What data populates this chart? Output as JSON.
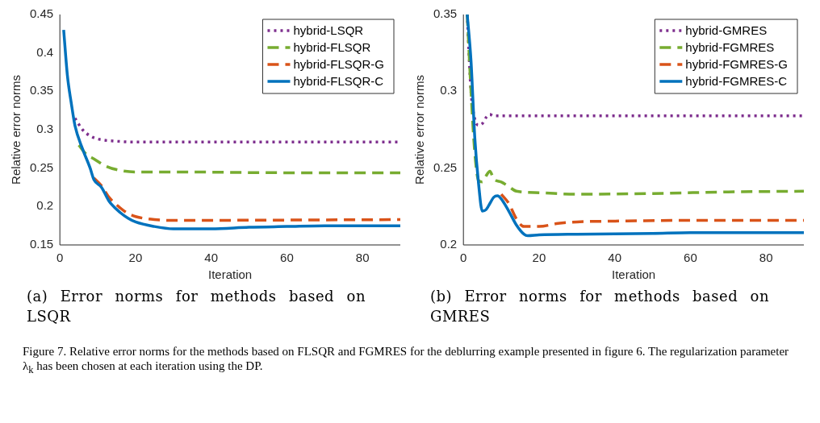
{
  "chart_data": [
    {
      "type": "line",
      "title": "(a) Error norms for methods based on LSQR",
      "xlabel": "Iteration",
      "ylabel": "Relative error norms",
      "xlim": [
        0,
        90
      ],
      "xticks": [
        0,
        20,
        40,
        60,
        80
      ],
      "ylim": [
        0.15,
        0.45
      ],
      "yticks": [
        0.15,
        0.2,
        0.25,
        0.3,
        0.35,
        0.4,
        0.45
      ],
      "grid": false,
      "legend": "top right",
      "annotations": [
        "Figure 7. Relative error norms for the methods based on FLSQR and FGMRES for the deblurring example presented in figure 6. The regularization parameter λ$_{k}$ has been chosen at each iteration using the DP."
      ],
      "series": [
        {
          "name": "hybrid-LSQR",
          "color": "#7e2f8e",
          "line_style": "dotted",
          "x": [
            4,
            6,
            8,
            10,
            15,
            20,
            90
          ],
          "values": [
            0.315,
            0.3,
            0.292,
            0.288,
            0.285,
            0.284,
            0.284
          ]
        },
        {
          "name": "hybrid-FLSQR",
          "color": "#77ac30",
          "line_style": "dashed",
          "x": [
            5,
            7,
            9,
            12,
            15,
            20,
            30,
            60,
            90
          ],
          "values": [
            0.28,
            0.268,
            0.262,
            0.253,
            0.248,
            0.245,
            0.245,
            0.244,
            0.244
          ]
        },
        {
          "name": "hybrid-FLSQR-G",
          "color": "#d95319",
          "line_style": "dashed",
          "x": [
            9,
            11,
            13,
            16,
            18,
            20,
            25,
            30,
            90
          ],
          "values": [
            0.237,
            0.227,
            0.212,
            0.198,
            0.191,
            0.187,
            0.183,
            0.182,
            0.183
          ]
        },
        {
          "name": "hybrid-FLSQR-C",
          "color": "#0072bd",
          "line_style": "solid",
          "x": [
            1,
            2,
            3,
            4,
            6,
            8,
            9,
            11,
            13,
            16,
            18,
            20,
            25,
            30,
            40,
            50,
            60,
            70,
            90
          ],
          "values": [
            0.43,
            0.37,
            0.335,
            0.305,
            0.275,
            0.25,
            0.235,
            0.225,
            0.207,
            0.192,
            0.185,
            0.18,
            0.174,
            0.171,
            0.171,
            0.173,
            0.174,
            0.175,
            0.175
          ]
        }
      ]
    },
    {
      "type": "line",
      "title": "(b) Error norms for methods based on GMRES",
      "xlabel": "Iteration",
      "ylabel": "Relative error norms",
      "xlim": [
        0,
        90
      ],
      "xticks": [
        0,
        20,
        40,
        60,
        80
      ],
      "ylim": [
        0.2,
        0.35
      ],
      "yticks": [
        0.2,
        0.25,
        0.3,
        0.35
      ],
      "grid": false,
      "legend": "top right",
      "series": [
        {
          "name": "hybrid-GMRES",
          "color": "#7e2f8e",
          "line_style": "dotted",
          "x": [
            1,
            2,
            3,
            4,
            5,
            6,
            7,
            8,
            90
          ],
          "values": [
            0.35,
            0.3,
            0.282,
            0.278,
            0.279,
            0.283,
            0.285,
            0.284,
            0.284
          ]
        },
        {
          "name": "hybrid-FGMRES",
          "color": "#77ac30",
          "line_style": "dashed",
          "x": [
            1,
            2,
            3,
            4,
            5,
            6,
            7,
            8,
            10,
            12,
            14,
            20,
            30,
            50,
            70,
            90
          ],
          "values": [
            0.35,
            0.3,
            0.26,
            0.242,
            0.241,
            0.245,
            0.248,
            0.243,
            0.241,
            0.238,
            0.235,
            0.234,
            0.233,
            0.2335,
            0.2345,
            0.235
          ]
        },
        {
          "name": "hybrid-FGMRES-G",
          "color": "#d95319",
          "line_style": "dashed",
          "x": [
            10,
            12,
            14,
            16,
            20,
            25,
            30,
            40,
            60,
            90
          ],
          "values": [
            0.233,
            0.227,
            0.217,
            0.212,
            0.212,
            0.214,
            0.215,
            0.2155,
            0.216,
            0.216
          ]
        },
        {
          "name": "hybrid-FGMRES-C",
          "color": "#0072bd",
          "line_style": "solid",
          "x": [
            1,
            2,
            3,
            4,
            5,
            6,
            7,
            8,
            9,
            10,
            12,
            14,
            16,
            17,
            20,
            30,
            50,
            60,
            90
          ],
          "values": [
            0.35,
            0.32,
            0.27,
            0.24,
            0.222,
            0.223,
            0.227,
            0.231,
            0.232,
            0.23,
            0.222,
            0.213,
            0.207,
            0.206,
            0.2065,
            0.207,
            0.2075,
            0.208,
            0.208
          ]
        }
      ]
    }
  ]
}
